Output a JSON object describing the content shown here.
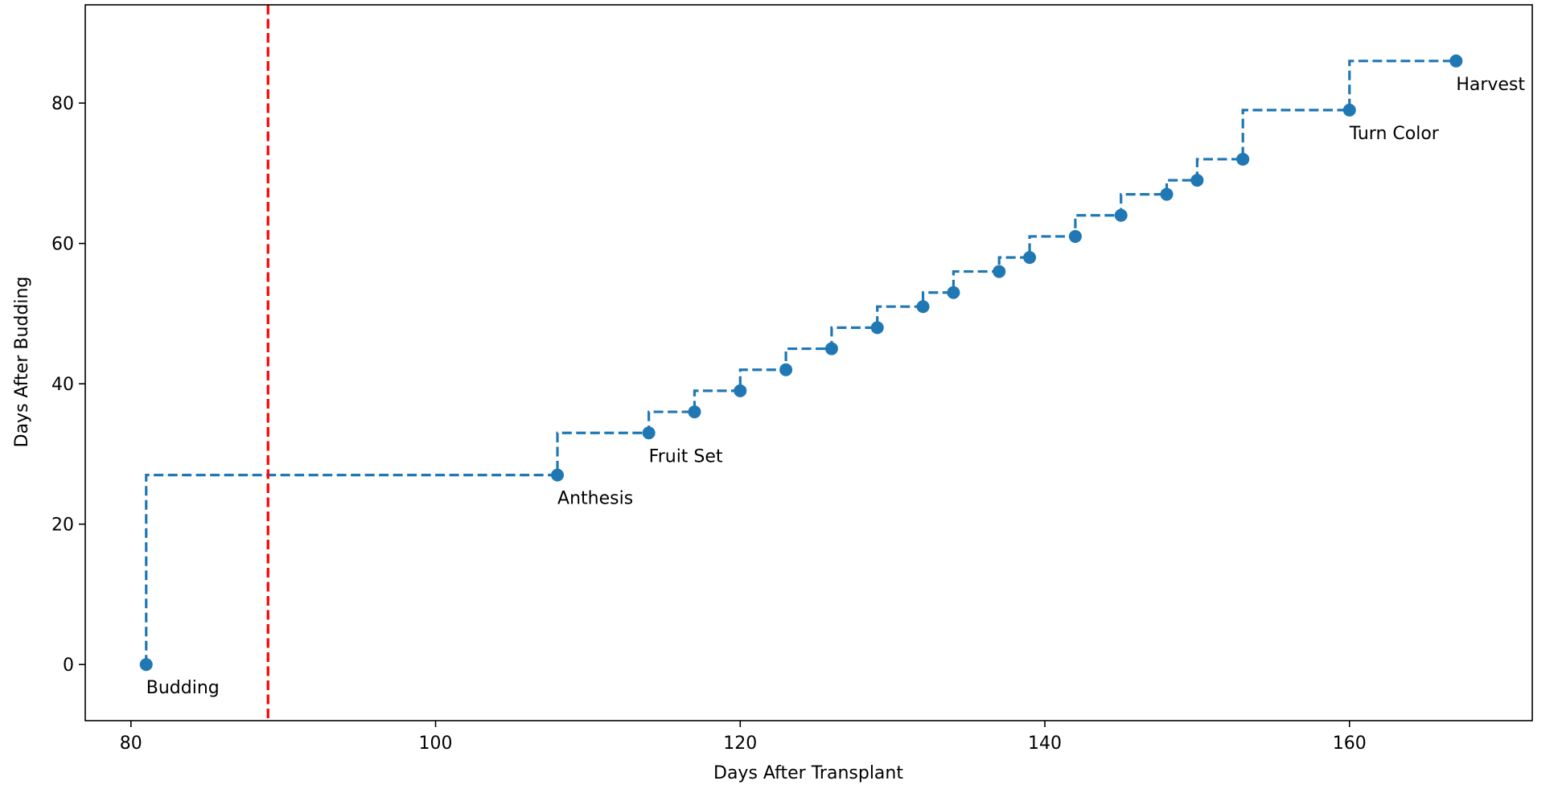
{
  "chart_data": {
    "type": "line",
    "title": "",
    "xlabel": "Days After Transplant",
    "ylabel": "Days After Budding",
    "xlim": [
      77,
      172
    ],
    "ylim": [
      -8,
      94
    ],
    "xticks": [
      80,
      100,
      120,
      140,
      160
    ],
    "yticks": [
      0,
      20,
      40,
      60,
      80
    ],
    "grid": false,
    "step": "post",
    "series": [
      {
        "color": "#1f77b4",
        "line_style": "dashed",
        "x": [
          81,
          108,
          114,
          117,
          120,
          123,
          126,
          129,
          132,
          134,
          137,
          139,
          142,
          145,
          148,
          150,
          153,
          160,
          167
        ],
        "y": [
          0,
          27,
          33,
          36,
          39,
          42,
          45,
          48,
          51,
          53,
          56,
          58,
          61,
          64,
          67,
          69,
          72,
          79,
          86
        ]
      }
    ],
    "vline": {
      "x": 89,
      "color": "#ff0000",
      "line_style": "dashed"
    },
    "annotations": [
      {
        "text": "Budding",
        "x": 81,
        "y": 0
      },
      {
        "text": "Anthesis",
        "x": 108,
        "y": 27
      },
      {
        "text": "Fruit Set",
        "x": 114,
        "y": 33
      },
      {
        "text": "Turn Color",
        "x": 160,
        "y": 79
      },
      {
        "text": "Harvest",
        "x": 167,
        "y": 86
      }
    ]
  }
}
